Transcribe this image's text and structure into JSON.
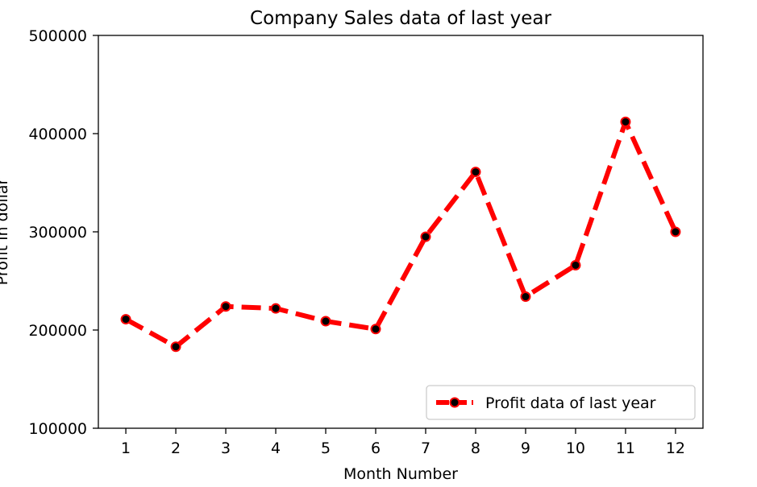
{
  "chart_data": {
    "type": "line",
    "title": "Company Sales data of last year",
    "xlabel": "Month Number",
    "ylabel": "Profit in dollar",
    "x": [
      1,
      2,
      3,
      4,
      5,
      6,
      7,
      8,
      9,
      10,
      11,
      12
    ],
    "xticks": [
      "1",
      "2",
      "3",
      "4",
      "5",
      "6",
      "7",
      "8",
      "9",
      "10",
      "11",
      "12"
    ],
    "xlim": [
      0.45,
      12.55
    ],
    "ylim": [
      100000,
      500000
    ],
    "yticks": [
      "100000",
      "200000",
      "300000",
      "400000",
      "500000"
    ],
    "ytick_values": [
      100000,
      200000,
      300000,
      400000,
      500000
    ],
    "grid": false,
    "legend_position": "lower right",
    "series": [
      {
        "name": "Profit data of last year",
        "values": [
          211000,
          183000,
          224000,
          222000,
          209000,
          201000,
          295000,
          361000,
          234000,
          266000,
          412000,
          300000
        ],
        "line_color": "#ff0000",
        "line_style": "dashed",
        "marker": "circle",
        "marker_face_color": "#000000",
        "marker_edge_color": "#ff0000"
      }
    ]
  }
}
